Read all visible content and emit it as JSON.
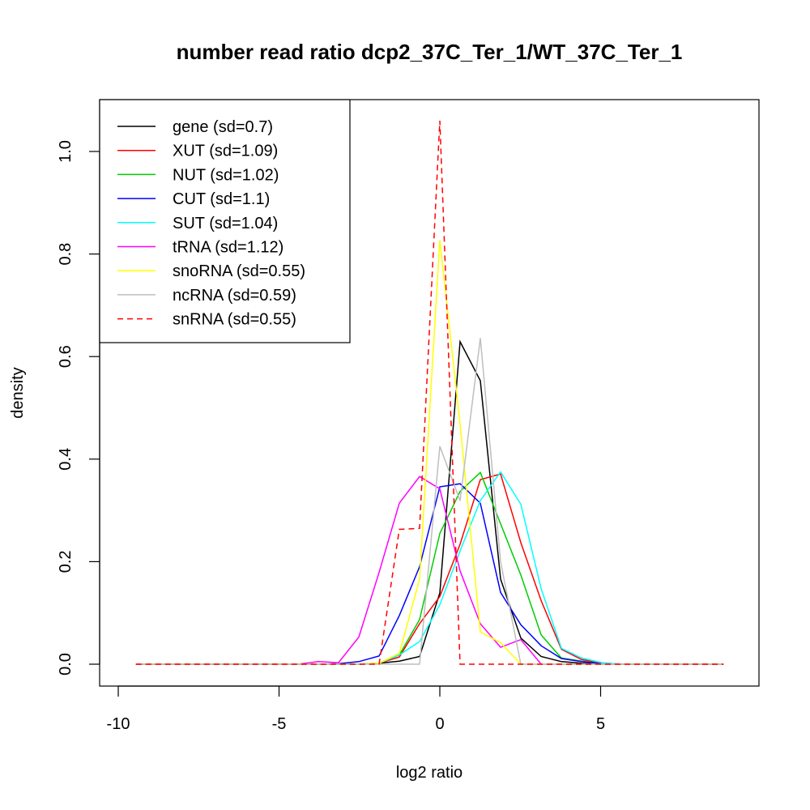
{
  "chart_data": {
    "type": "line",
    "title": "number read ratio dcp2_37C_Ter_1/WT_37C_Ter_1",
    "xlabel": "log2 ratio",
    "ylabel": "density",
    "xlim": [
      -10.4,
      10.1
    ],
    "ylim": [
      0,
      1.1
    ],
    "xticks": [
      -10,
      -5,
      0,
      5
    ],
    "xtick_labels": [
      "-10",
      "-5",
      "0",
      "5"
    ],
    "yticks": [
      0,
      0.2,
      0.4,
      0.6,
      0.8,
      1.0
    ],
    "ytick_labels": [
      "0.0",
      "0.2",
      "0.4",
      "0.6",
      "0.8",
      "1.0"
    ],
    "grid": false,
    "legend_position": "top-left",
    "x": [
      -9.45,
      -8.82,
      -8.19,
      -7.56,
      -6.93,
      -6.3,
      -5.67,
      -5.04,
      -4.41,
      -3.78,
      -3.15,
      -2.52,
      -1.89,
      -1.26,
      -0.63,
      0,
      0.63,
      1.26,
      1.89,
      2.52,
      3.15,
      3.78,
      4.41,
      5.04,
      5.67,
      6.3,
      6.93,
      7.56,
      8.19,
      8.82
    ],
    "series": [
      {
        "name": "gene (sd=0.7)",
        "color": "#000000",
        "dash": false,
        "values": [
          0,
          0,
          0,
          0,
          0,
          0,
          0,
          0,
          0,
          0,
          0,
          0,
          0.002,
          0.006,
          0.015,
          0.139,
          0.629,
          0.553,
          0.166,
          0.051,
          0.015,
          0.005,
          0.002,
          0,
          0,
          0,
          0,
          0,
          0,
          0
        ]
      },
      {
        "name": "XUT (sd=1.09)",
        "color": "#ff0000",
        "dash": false,
        "values": [
          0,
          0,
          0,
          0,
          0,
          0,
          0,
          0,
          0,
          0,
          0,
          0,
          0.002,
          0.014,
          0.079,
          0.132,
          0.234,
          0.36,
          0.371,
          0.237,
          0.124,
          0.029,
          0.009,
          0.002,
          0,
          0,
          0,
          0,
          0,
          0
        ]
      },
      {
        "name": "NUT (sd=1.02)",
        "color": "#00cd00",
        "dash": false,
        "values": [
          0,
          0,
          0,
          0,
          0,
          0,
          0,
          0,
          0,
          0,
          0,
          0,
          0.002,
          0.018,
          0.087,
          0.255,
          0.337,
          0.374,
          0.274,
          0.174,
          0.057,
          0.012,
          0.006,
          0.001,
          0,
          0,
          0,
          0,
          0,
          0
        ]
      },
      {
        "name": "CUT (sd=1.1)",
        "color": "#0000ff",
        "dash": false,
        "values": [
          0,
          0,
          0,
          0,
          0,
          0,
          0,
          0,
          0,
          0,
          0.001,
          0.005,
          0.016,
          0.095,
          0.19,
          0.346,
          0.352,
          0.314,
          0.14,
          0.077,
          0.036,
          0.011,
          0.005,
          0.001,
          0,
          0,
          0,
          0,
          0,
          0
        ]
      },
      {
        "name": "SUT (sd=1.04)",
        "color": "#00ffff",
        "dash": false,
        "values": [
          0,
          0,
          0,
          0,
          0,
          0,
          0,
          0,
          0,
          0,
          0,
          0,
          0.002,
          0.018,
          0.044,
          0.116,
          0.221,
          0.319,
          0.375,
          0.312,
          0.147,
          0.031,
          0.012,
          0.003,
          0,
          0,
          0,
          0,
          0,
          0
        ]
      },
      {
        "name": "tRNA (sd=1.12)",
        "color": "#ff00ff",
        "dash": false,
        "values": [
          0,
          0,
          0,
          0,
          0,
          0,
          0,
          0,
          0,
          0.005,
          0.003,
          0.053,
          0.179,
          0.314,
          0.366,
          0.342,
          0.182,
          0.079,
          0.033,
          0.048,
          0,
          0,
          0,
          0,
          0,
          0,
          0,
          0,
          0,
          0
        ]
      },
      {
        "name": "snoRNA (sd=0.55)",
        "color": "#ffff00",
        "dash": false,
        "values": [
          0,
          0,
          0,
          0,
          0,
          0,
          0,
          0,
          0,
          0,
          0,
          0,
          0.002,
          0.021,
          0.166,
          0.827,
          0.468,
          0.063,
          0.042,
          0,
          0,
          0,
          0,
          0,
          0,
          0,
          0,
          0,
          0,
          0
        ]
      },
      {
        "name": "ncRNA (sd=0.59)",
        "color": "#bebebe",
        "dash": false,
        "values": [
          0,
          0,
          0,
          0,
          0,
          0,
          0,
          0,
          0,
          0,
          0,
          0,
          0,
          0,
          0,
          0.425,
          0.319,
          0.636,
          0.2,
          0,
          0,
          0,
          0,
          0,
          0,
          0,
          0,
          0,
          0,
          0
        ]
      },
      {
        "name": "snRNA (sd=0.55)",
        "color": "#ff0000",
        "dash": true,
        "values": [
          0,
          0,
          0,
          0,
          0,
          0,
          0,
          0,
          0,
          0,
          0,
          0,
          0,
          0.263,
          0.265,
          1.06,
          0,
          0,
          0,
          0,
          0,
          0,
          0,
          0,
          0,
          0,
          0,
          0,
          0,
          0
        ]
      }
    ]
  }
}
